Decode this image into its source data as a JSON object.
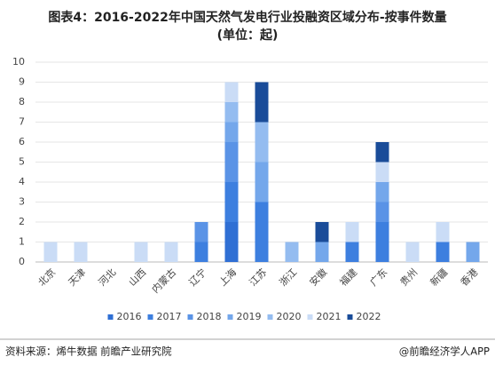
{
  "chart_data": {
    "type": "stacked-bar",
    "title": "图表4：2016-2022年中国天然气发电行业投融资区域分布-按事件数量",
    "subtitle": "(单位：起)",
    "categories": [
      "北京",
      "天津",
      "河北",
      "山西",
      "内蒙古",
      "辽宁",
      "上海",
      "江苏",
      "浙江",
      "安徽",
      "福建",
      "广东",
      "贵州",
      "新疆",
      "香港"
    ],
    "series": [
      {
        "name": "2016",
        "color": "#2f6fd4",
        "values": [
          0,
          0,
          0,
          0,
          0,
          0,
          2,
          0,
          0,
          0,
          0,
          0,
          0,
          0,
          0
        ]
      },
      {
        "name": "2017",
        "color": "#3d7fdf",
        "values": [
          0,
          0,
          0,
          0,
          0,
          1,
          2,
          3,
          0,
          0,
          1,
          2,
          0,
          1,
          0
        ]
      },
      {
        "name": "2018",
        "color": "#5a93e6",
        "values": [
          0,
          0,
          0,
          0,
          0,
          1,
          2,
          0,
          0,
          0,
          0,
          1,
          0,
          0,
          0
        ]
      },
      {
        "name": "2019",
        "color": "#74a7eb",
        "values": [
          0,
          0,
          0,
          0,
          0,
          0,
          1,
          2,
          0,
          1,
          0,
          1,
          0,
          0,
          1
        ]
      },
      {
        "name": "2020",
        "color": "#94bcf0",
        "values": [
          0,
          0,
          0,
          0,
          0,
          0,
          1,
          2,
          1,
          0,
          0,
          0,
          0,
          0,
          0
        ]
      },
      {
        "name": "2021",
        "color": "#cadcf6",
        "values": [
          1,
          1,
          0,
          1,
          1,
          0,
          1,
          0,
          0,
          0,
          1,
          1,
          1,
          1,
          0
        ]
      },
      {
        "name": "2022",
        "color": "#1a4c99",
        "values": [
          0,
          0,
          0,
          0,
          0,
          0,
          0,
          2,
          0,
          1,
          0,
          1,
          0,
          0,
          0
        ]
      }
    ],
    "ylim": [
      0,
      10
    ],
    "yticks": [
      0,
      1,
      2,
      3,
      4,
      5,
      6,
      7,
      8,
      9,
      10
    ],
    "source": "资料来源：烯牛数据 前瞻产业研究院",
    "credit": "@前瞻经济学人APP"
  }
}
